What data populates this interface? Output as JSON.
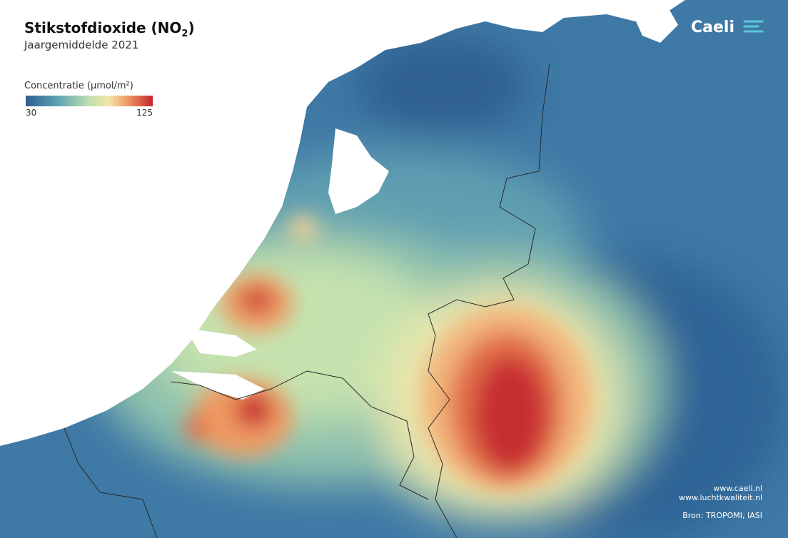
{
  "header": {
    "title_main": "Stikstofdioxide (NO",
    "title_sub": "2",
    "title_end": ")",
    "subtitle": "Jaargemiddelde 2021"
  },
  "legend": {
    "title": "Concentratie (µmol/m²)",
    "min": 30,
    "max": 125
  },
  "brand": "Caeli",
  "footer": {
    "links": [
      "www.caeli.nl",
      "www.luchtkwaliteit.nl"
    ],
    "source": "Bron: TROPOMI, IASI"
  }
}
